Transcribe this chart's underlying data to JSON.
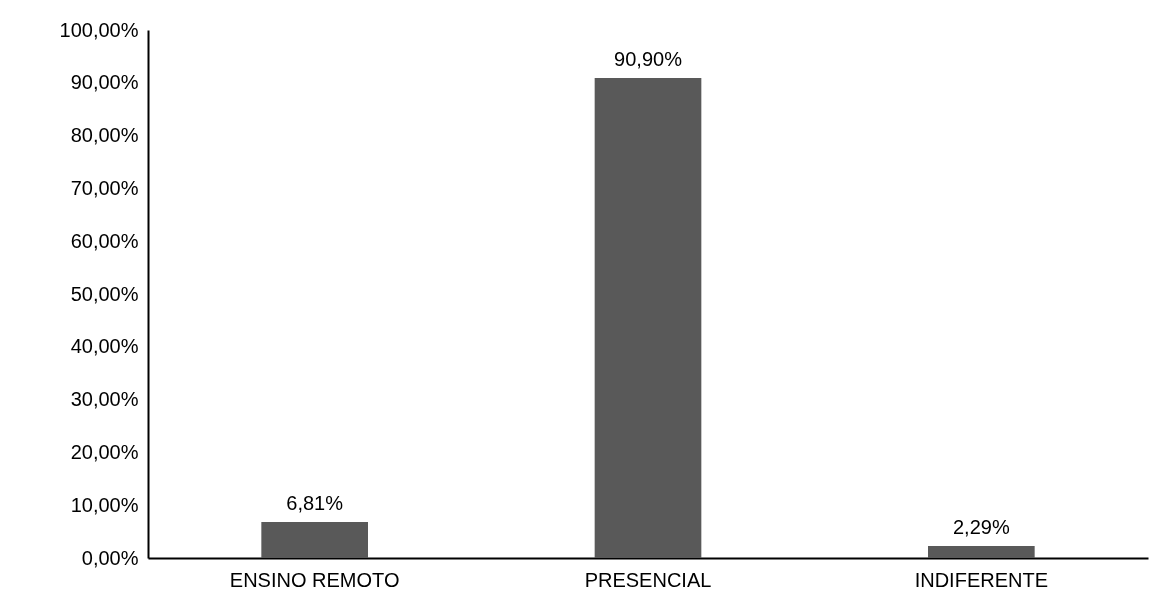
{
  "chart_data": {
    "type": "bar",
    "categories": [
      "ENSINO REMOTO",
      "PRESENCIAL",
      "INDIFERENTE"
    ],
    "values": [
      6.81,
      90.9,
      2.29
    ],
    "color": "#595959",
    "value_labels": [
      "6,81%",
      "90,90%",
      "2,29%"
    ],
    "ylim": [
      0,
      100
    ],
    "yticks": [
      {
        "value": 0,
        "label": "0,00%"
      },
      {
        "value": 10,
        "label": "10,00%"
      },
      {
        "value": 20,
        "label": "20,00%"
      },
      {
        "value": 30,
        "label": "30,00%"
      },
      {
        "value": 40,
        "label": "40,00%"
      },
      {
        "value": 50,
        "label": "50,00%"
      },
      {
        "value": 60,
        "label": "60,00%"
      },
      {
        "value": 70,
        "label": "70,00%"
      },
      {
        "value": 80,
        "label": "80,00%"
      },
      {
        "value": 90,
        "label": "90,00%"
      },
      {
        "value": 100,
        "label": "100,00%"
      }
    ],
    "grid": false
  }
}
